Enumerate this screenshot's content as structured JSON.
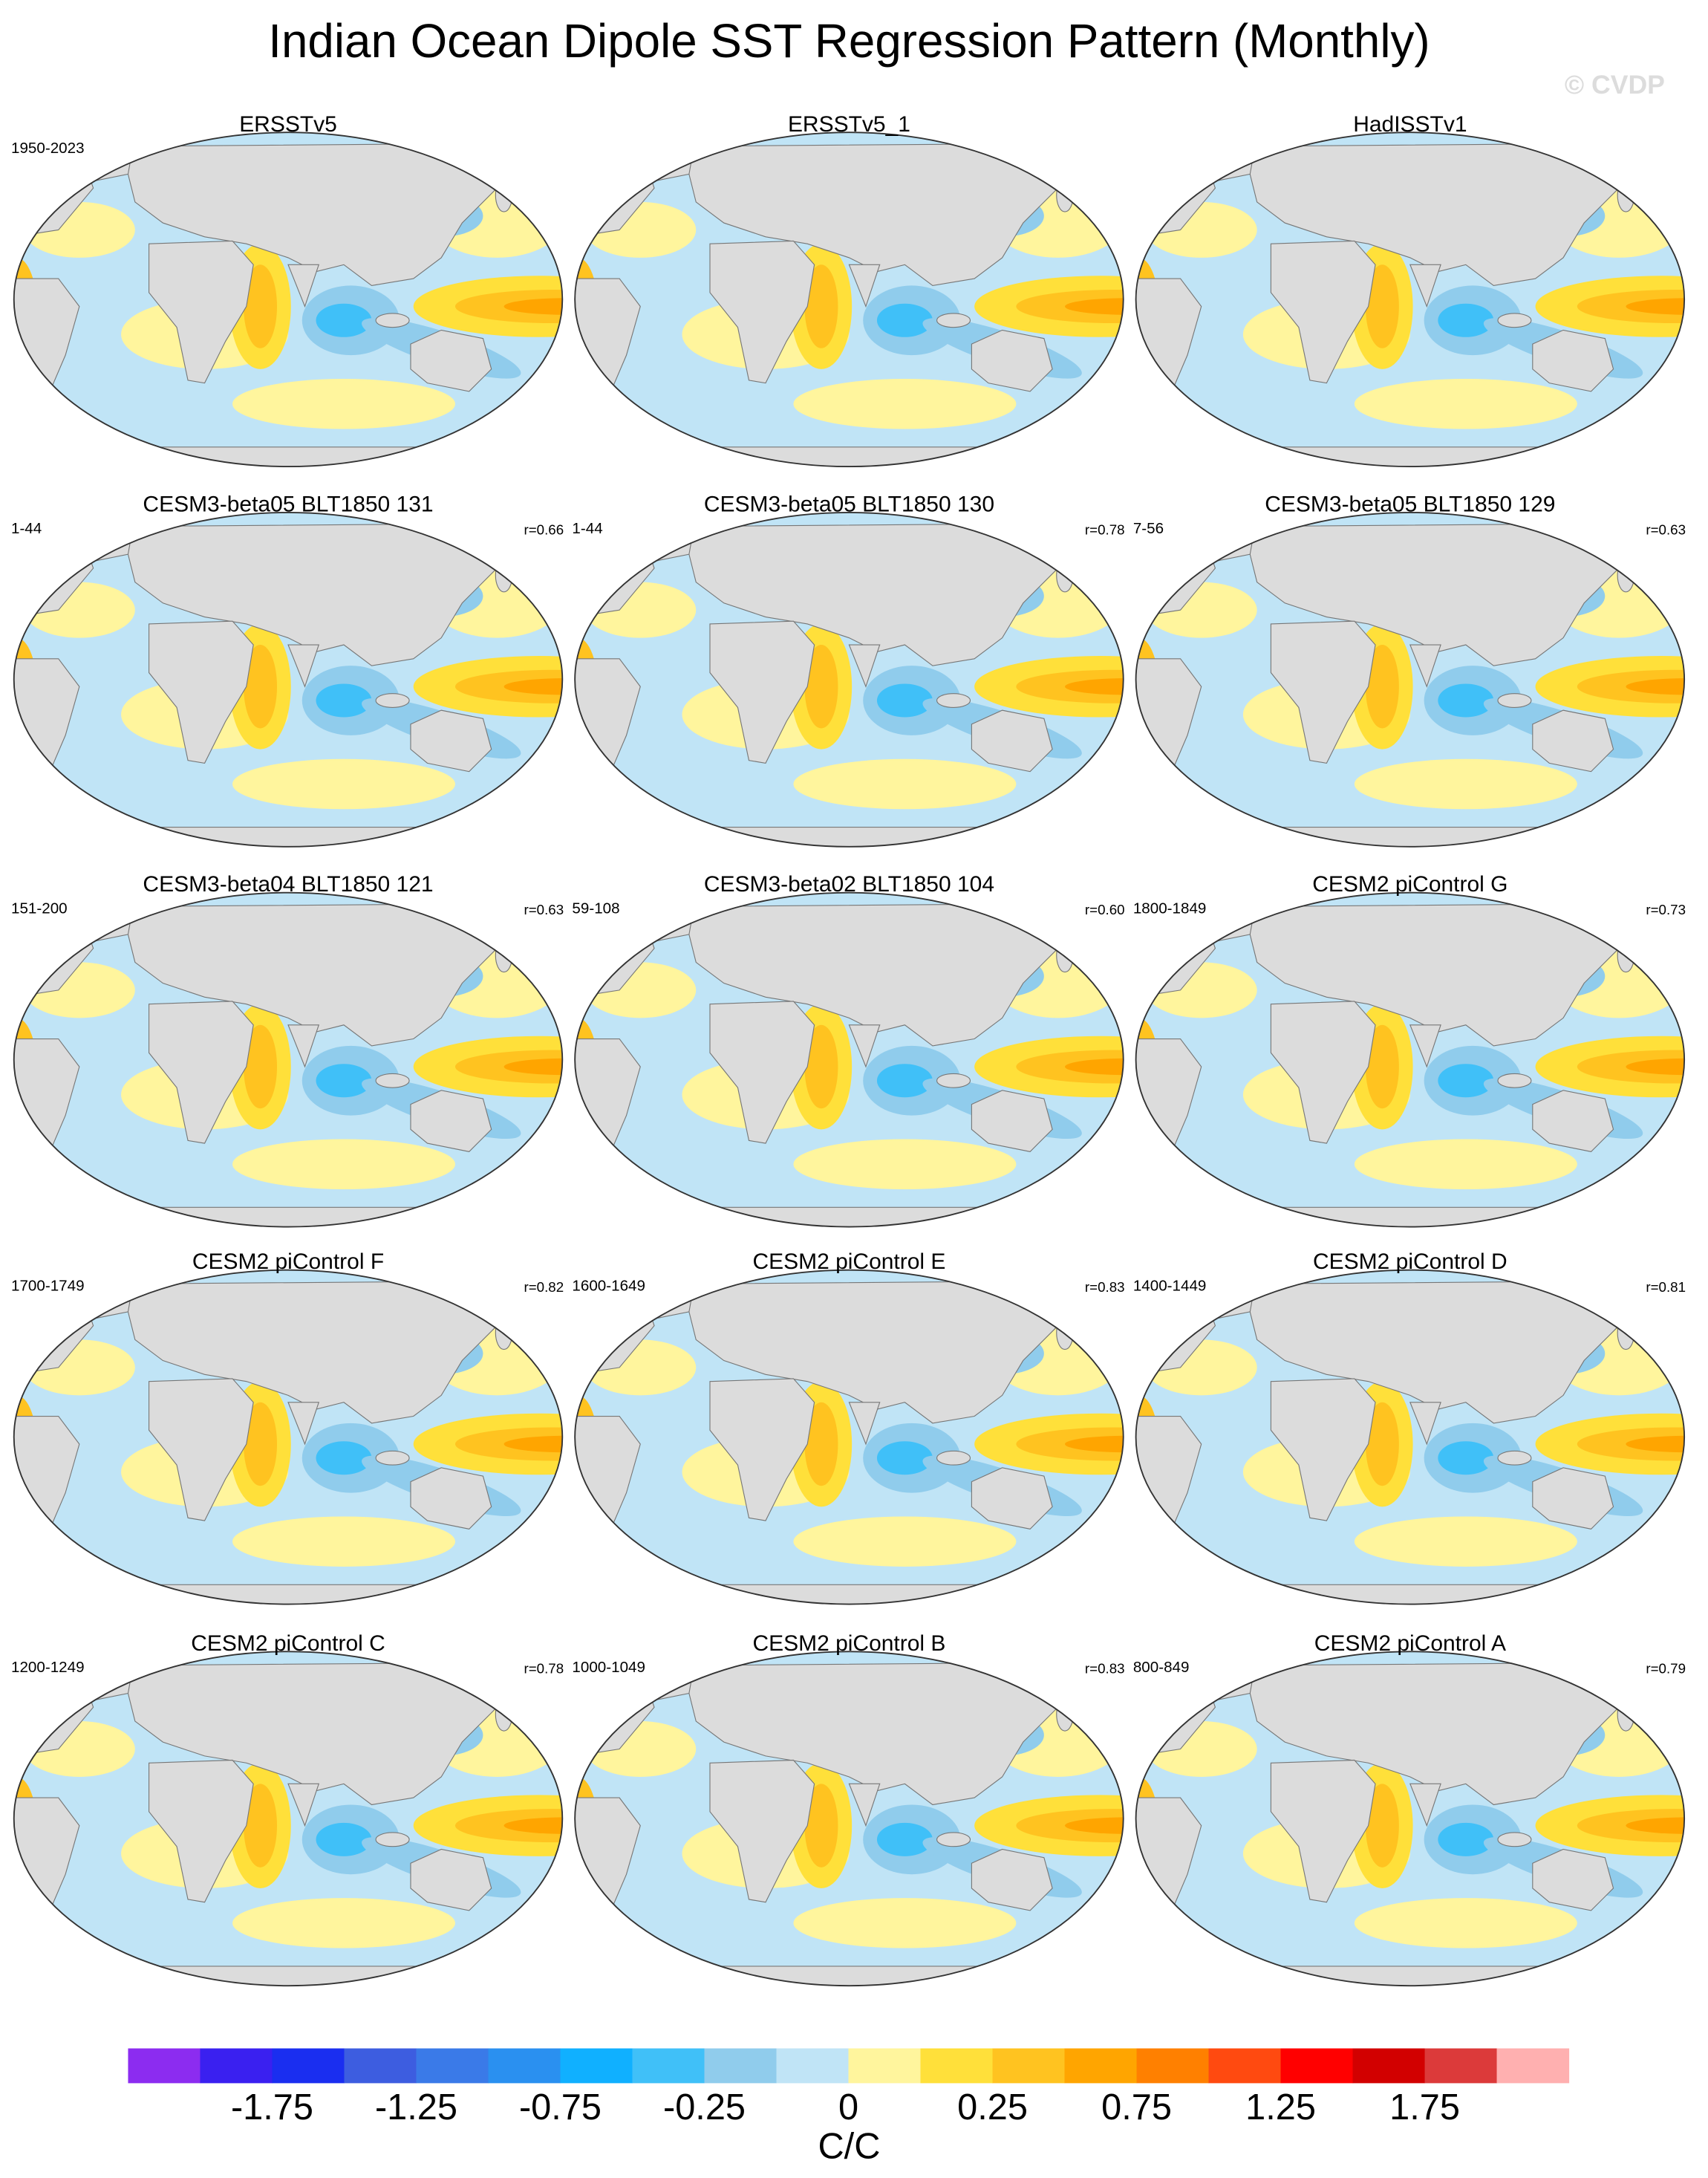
{
  "title": "Indian Ocean Dipole SST Regression Pattern (Monthly)",
  "watermark": "© CVDP",
  "panels": [
    {
      "title": "ERSSTv5",
      "period": "1950-2023"
    },
    {
      "title": "ERSSTv5_1"
    },
    {
      "title": "HadISSTv1"
    },
    {
      "title": "CESM3-beta05 BLT1850 131",
      "period": "1-44",
      "corr": "r=0.66"
    },
    {
      "title": "CESM3-beta05 BLT1850 130",
      "period": "1-44",
      "corr": "r=0.78"
    },
    {
      "title": "CESM3-beta05 BLT1850 129",
      "period": "7-56",
      "corr": "r=0.63"
    },
    {
      "title": "CESM3-beta04 BLT1850 121",
      "period": "151-200",
      "corr": "r=0.63"
    },
    {
      "title": "CESM3-beta02 BLT1850 104",
      "period": "59-108",
      "corr": "r=0.60"
    },
    {
      "title": "CESM2 piControl G",
      "period": "1800-1849",
      "corr": "r=0.73"
    },
    {
      "title": "CESM2 piControl F",
      "period": "1700-1749",
      "corr": "r=0.82"
    },
    {
      "title": "CESM2 piControl E",
      "period": "1600-1649",
      "corr": "r=0.83"
    },
    {
      "title": "CESM2 piControl D",
      "period": "1400-1449",
      "corr": "r=0.81"
    },
    {
      "title": "CESM2 piControl C",
      "period": "1200-1249",
      "corr": "r=0.78"
    },
    {
      "title": "CESM2 piControl B",
      "period": "1000-1049",
      "corr": "r=0.83"
    },
    {
      "title": "CESM2 piControl A",
      "period": "800-849",
      "corr": "r=0.79"
    }
  ],
  "colorbar": {
    "label": "C/C",
    "levels": [
      -2,
      -1.75,
      -1.5,
      -1.25,
      -1,
      -0.75,
      -0.5,
      -0.25,
      -0.1,
      0,
      0.1,
      0.25,
      0.5,
      0.75,
      1,
      1.25,
      1.5,
      1.75,
      2
    ],
    "ticks": [
      -1.75,
      -1.25,
      -0.75,
      -0.25,
      0,
      0.25,
      0.75,
      1.25,
      1.75
    ],
    "colors": [
      "#8c2cf0",
      "#3a20f0",
      "#1a2ef0",
      "#3d5de0",
      "#3a7ae8",
      "#2a90f0",
      "#10b0ff",
      "#40c0f8",
      "#90ccec",
      "#c0e4f6",
      "#fff59d",
      "#ffe03a",
      "#ffc320",
      "#ffa500",
      "#ff8000",
      "#ff4a10",
      "#ff0000",
      "#d20000",
      "#dc3a3a",
      "#ffb0b0"
    ]
  }
}
